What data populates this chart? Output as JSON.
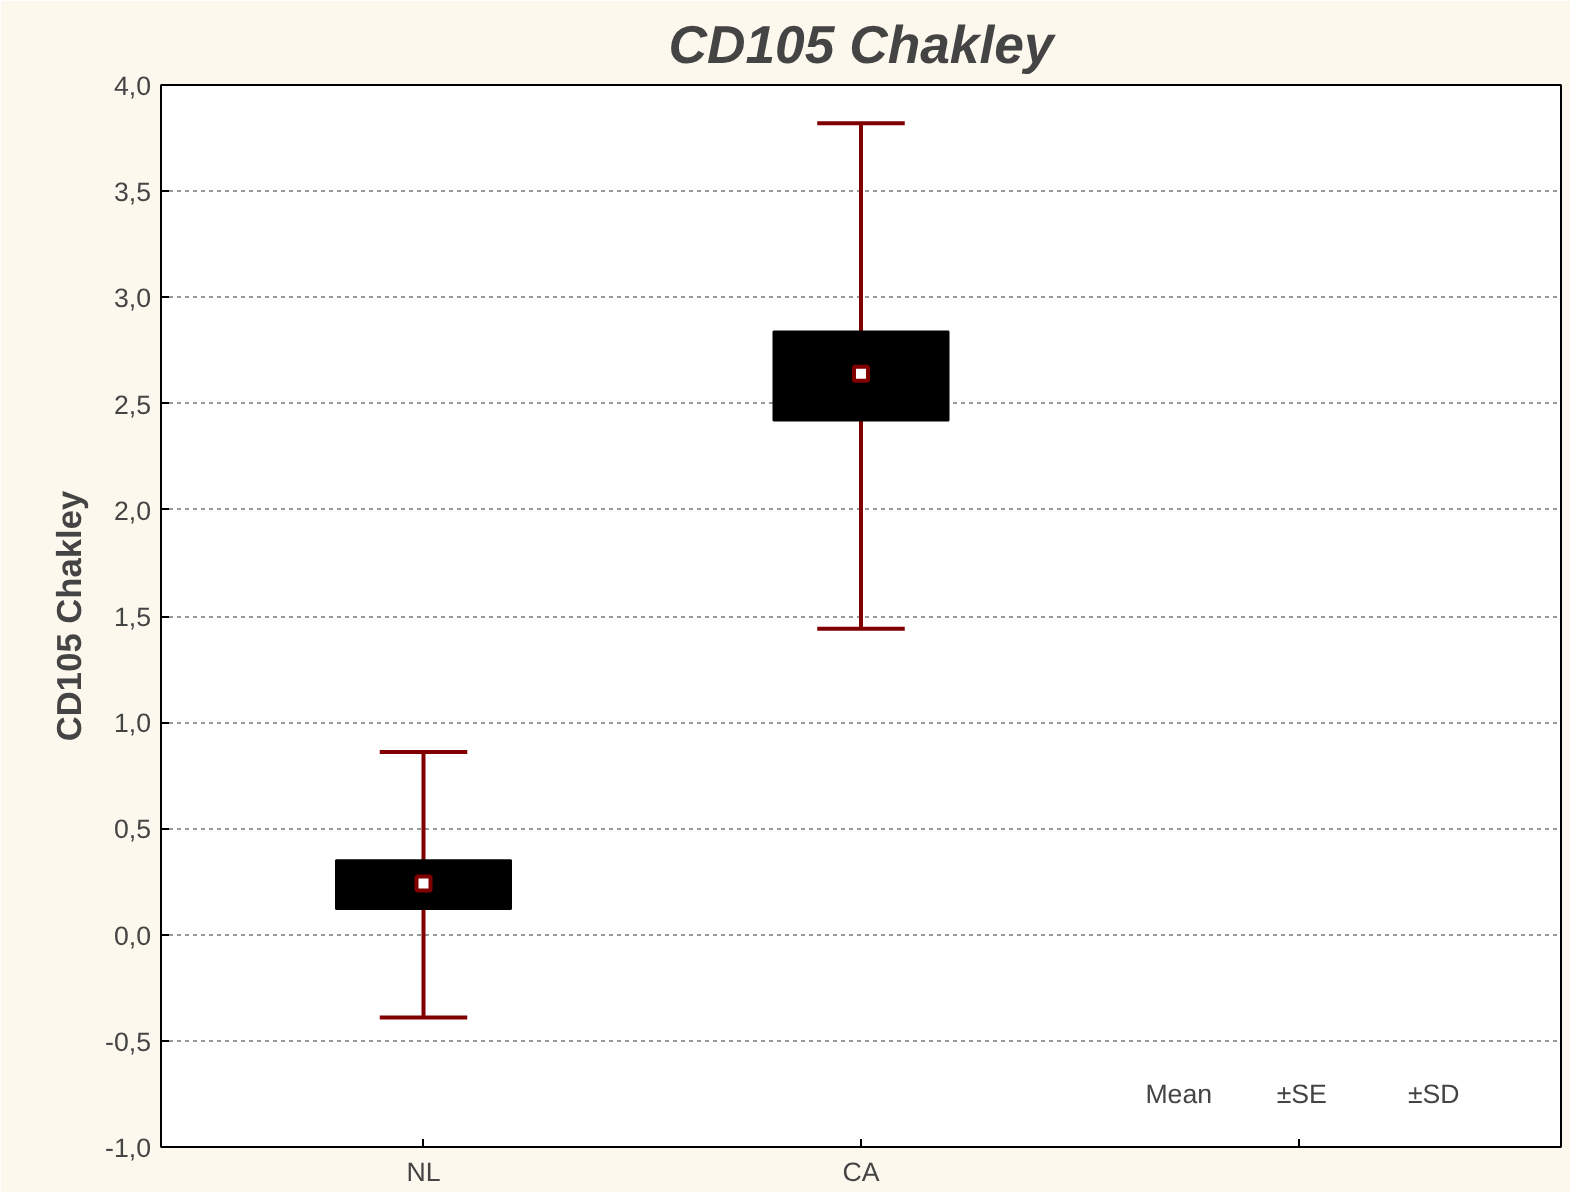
{
  "chart_data": {
    "type": "box",
    "title": "CD105 Chakley",
    "ylabel": "CD105 Chakley",
    "categories": [
      "NL",
      "CA"
    ],
    "boxes": [
      {
        "low": -0.39,
        "q1": 0.12,
        "q3": 0.35,
        "high": 0.86,
        "mean": 0.24
      },
      {
        "low": 1.44,
        "q1": 2.42,
        "q3": 2.84,
        "high": 3.82,
        "mean": 2.64
      }
    ],
    "ylim": [
      -1,
      4
    ],
    "yticks": [
      {
        "value": -1,
        "label": "-1,0"
      },
      {
        "value": -0.5,
        "label": "-0,5"
      },
      {
        "value": 0,
        "label": "0,0"
      },
      {
        "value": 0.5,
        "label": "0,5"
      },
      {
        "value": 1,
        "label": "1,0"
      },
      {
        "value": 1.5,
        "label": "1,5"
      },
      {
        "value": 2,
        "label": "2,0"
      },
      {
        "value": 2.5,
        "label": "2,5"
      },
      {
        "value": 3,
        "label": "3,0"
      },
      {
        "value": 3.5,
        "label": "3,5"
      },
      {
        "value": 4,
        "label": "4,0"
      }
    ],
    "grid": "y",
    "color": "#000000",
    "annotations": [
      "Mean",
      "±SE",
      "±SD"
    ]
  }
}
